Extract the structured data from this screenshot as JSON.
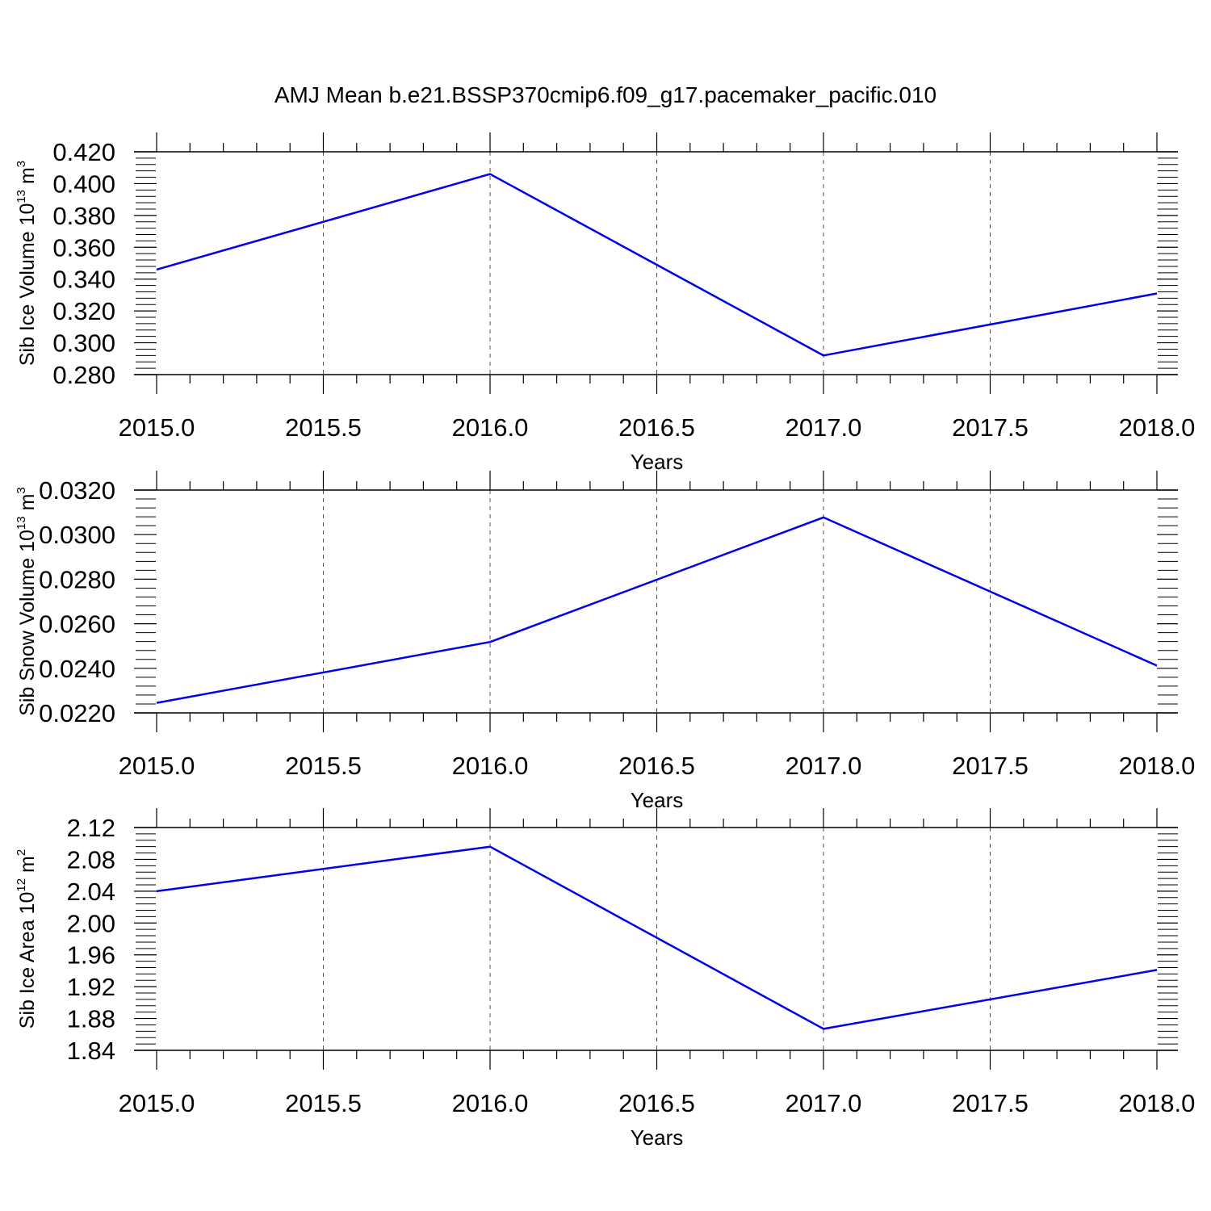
{
  "figure": {
    "title": "AMJ Mean b.e21.BSSP370cmip6.f09_g17.pacemaker_pacific.010"
  },
  "chart_data": [
    {
      "type": "line",
      "xlabel": "Years",
      "ylabel": {
        "text": "Sib Ice Volume 10",
        "exp": "13",
        "unit": " m",
        "unit_exp": "3"
      },
      "xlim": [
        2015.0,
        2018.0
      ],
      "ylim": [
        0.28,
        0.42
      ],
      "xticks": [
        2015.0,
        2015.5,
        2016.0,
        2016.5,
        2017.0,
        2017.5,
        2018.0
      ],
      "xtick_labels": [
        "2015.0",
        "2015.5",
        "2016.0",
        "2016.5",
        "2017.0",
        "2017.5",
        "2018.0"
      ],
      "yticks": [
        0.28,
        0.3,
        0.32,
        0.34,
        0.36,
        0.38,
        0.4,
        0.42
      ],
      "ytick_labels": [
        "0.280",
        "0.300",
        "0.320",
        "0.340",
        "0.360",
        "0.380",
        "0.400",
        "0.420"
      ],
      "grid": "vertical-dashed",
      "series": [
        {
          "color": "#0000ee",
          "x": [
            2015,
            2016,
            2017,
            2018
          ],
          "values": [
            0.346,
            0.406,
            0.292,
            0.331
          ]
        }
      ]
    },
    {
      "type": "line",
      "xlabel": "Years",
      "ylabel": {
        "text": "Sib Snow Volume 10",
        "exp": "13",
        "unit": " m",
        "unit_exp": "3"
      },
      "xlim": [
        2015.0,
        2018.0
      ],
      "ylim": [
        0.022,
        0.032
      ],
      "xticks": [
        2015.0,
        2015.5,
        2016.0,
        2016.5,
        2017.0,
        2017.5,
        2018.0
      ],
      "xtick_labels": [
        "2015.0",
        "2015.5",
        "2016.0",
        "2016.5",
        "2017.0",
        "2017.5",
        "2018.0"
      ],
      "yticks": [
        0.022,
        0.024,
        0.026,
        0.028,
        0.03,
        0.032
      ],
      "ytick_labels": [
        "0.0220",
        "0.0240",
        "0.0260",
        "0.0280",
        "0.0300",
        "0.0320"
      ],
      "grid": "vertical-dashed",
      "series": [
        {
          "color": "#0000ee",
          "x": [
            2015,
            2016,
            2017,
            2018
          ],
          "values": [
            0.02245,
            0.02518,
            0.03077,
            0.02412
          ]
        }
      ]
    },
    {
      "type": "line",
      "xlabel": "Years",
      "ylabel": {
        "text": "Sib Ice Area 10",
        "exp": "12",
        "unit": " m",
        "unit_exp": "2"
      },
      "xlim": [
        2015.0,
        2018.0
      ],
      "ylim": [
        1.84,
        2.12
      ],
      "xticks": [
        2015.0,
        2015.5,
        2016.0,
        2016.5,
        2017.0,
        2017.5,
        2018.0
      ],
      "xtick_labels": [
        "2015.0",
        "2015.5",
        "2016.0",
        "2016.5",
        "2017.0",
        "2017.5",
        "2018.0"
      ],
      "yticks": [
        1.84,
        1.88,
        1.92,
        1.96,
        2.0,
        2.04,
        2.08,
        2.12
      ],
      "ytick_labels": [
        "1.84",
        "1.88",
        "1.92",
        "1.96",
        "2.00",
        "2.04",
        "2.08",
        "2.12"
      ],
      "grid": "vertical-dashed",
      "series": [
        {
          "color": "#0000ee",
          "x": [
            2015,
            2016,
            2017,
            2018
          ],
          "values": [
            2.04,
            2.096,
            1.867,
            1.941
          ]
        }
      ]
    }
  ]
}
